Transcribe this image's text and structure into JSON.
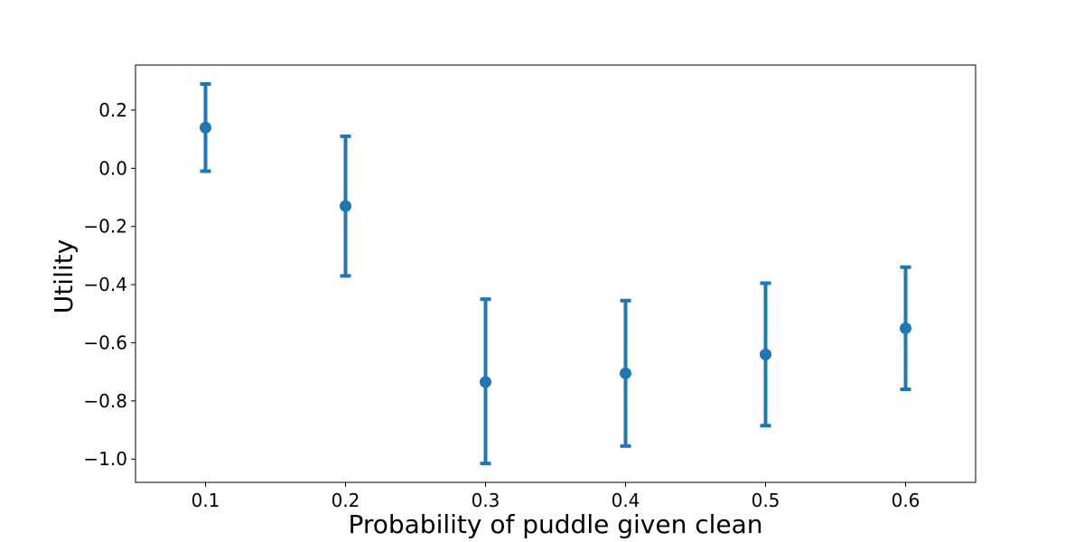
{
  "chart_data": {
    "type": "scatter",
    "variant": "errorbar",
    "title": "",
    "xlabel": "Probability of puddle given clean",
    "ylabel": "Utility",
    "xlim": [
      0.05,
      0.65
    ],
    "ylim": [
      -1.08,
      0.355
    ],
    "xticks": [
      0.1,
      0.2,
      0.3,
      0.4,
      0.5,
      0.6
    ],
    "xtick_labels": [
      "0.1",
      "0.2",
      "0.3",
      "0.4",
      "0.5",
      "0.6"
    ],
    "yticks": [
      0.2,
      0.0,
      -0.2,
      -0.4,
      -0.6,
      -0.8,
      -1.0
    ],
    "ytick_labels": [
      "0.2",
      "0.0",
      "−0.2",
      "−0.4",
      "−0.6",
      "−0.8",
      "−1.0"
    ],
    "grid": false,
    "legend": false,
    "color": "#1f77b4",
    "series": [
      {
        "x": [
          0.1,
          0.2,
          0.3,
          0.4,
          0.5,
          0.6
        ],
        "y": [
          0.14,
          -0.13,
          -0.735,
          -0.705,
          -0.64,
          -0.55
        ],
        "err_low": [
          -0.01,
          -0.37,
          -1.015,
          -0.955,
          -0.885,
          -0.76
        ],
        "err_high": [
          0.29,
          0.11,
          -0.45,
          -0.455,
          -0.395,
          -0.34
        ]
      }
    ]
  }
}
